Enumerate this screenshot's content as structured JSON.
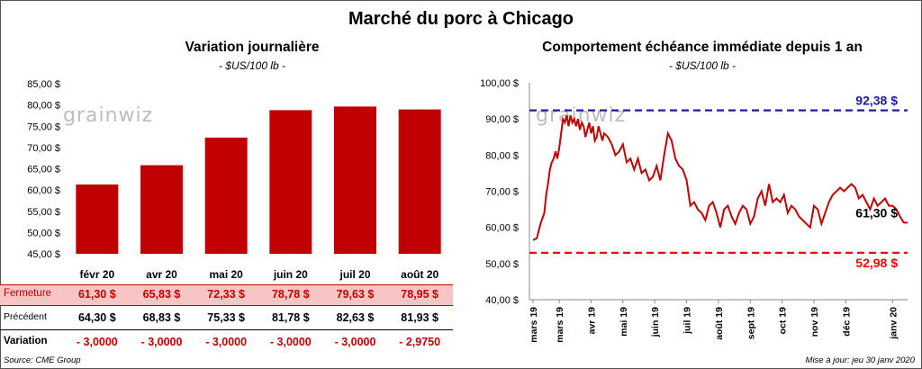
{
  "title": "Marché du porc à Chicago",
  "footer": {
    "source": "Source: CME Group",
    "update": "Mise à jour: jeu 30 janv 2020"
  },
  "left": {
    "title": "Variation  journalière",
    "subtitle": "- $US/100 lb -",
    "watermark": "grainwiz",
    "table": {
      "rows": [
        {
          "label": "Fermeture",
          "cells": [
            "61,30  $",
            "65,83  $",
            "72,33  $",
            "78,78  $",
            "79,63  $",
            "78,95  $"
          ]
        },
        {
          "label": "Précédent",
          "cells": [
            "64,30  $",
            "68,83  $",
            "75,33  $",
            "81,78  $",
            "82,63  $",
            "81,93  $"
          ]
        },
        {
          "label": "Variation",
          "cells": [
            "- 3,0000",
            "- 3,0000",
            "- 3,0000",
            "- 3,0000",
            "- 3,0000",
            "- 2,9750"
          ]
        }
      ]
    }
  },
  "right": {
    "title": "Comportement  échéance immédiate depuis 1 an",
    "subtitle": "- $US/100 lb -",
    "watermark": "grainwiz"
  },
  "colors": {
    "bar": "#c00000",
    "line": "#c00000",
    "max_line": "#1a1aa8",
    "min_line": "#ff0000",
    "table_highlight": "#f8c4c4",
    "table_highlight_text": "#c00000"
  },
  "chart_data": [
    {
      "type": "bar",
      "title": "Variation  journalière",
      "subtitle": "- $US/100 lb -",
      "categories": [
        "févr 20",
        "avr 20",
        "mai 20",
        "juin 20",
        "juil 20",
        "août 20"
      ],
      "values": [
        61.3,
        65.83,
        72.33,
        78.78,
        79.63,
        78.95
      ],
      "ylim": [
        45,
        85
      ],
      "yticks": [
        "45,00 $",
        "50,00 $",
        "55,00 $",
        "60,00 $",
        "65,00 $",
        "70,00 $",
        "75,00 $",
        "80,00 $",
        "85,00 $"
      ],
      "ytick_values": [
        45,
        50,
        55,
        60,
        65,
        70,
        75,
        80,
        85
      ],
      "grid": false
    },
    {
      "type": "line",
      "title": "Comportement  échéance immédiate depuis 1 an",
      "subtitle": "- $US/100 lb -",
      "ylim": [
        40,
        100
      ],
      "yticks": [
        "40,00 $",
        "50,00 $",
        "60,00 $",
        "70,00 $",
        "80,00 $",
        "90,00 $",
        "100,00 $"
      ],
      "ytick_values": [
        40,
        50,
        60,
        70,
        80,
        90,
        100
      ],
      "xticks": [
        "mars 19",
        "mars 19",
        "avr 19",
        "mai 19",
        "juin 19",
        "juil 19",
        "août 19",
        "sept 19",
        "oct 19",
        "nov 19",
        "déc 19",
        "janv 20"
      ],
      "xtick_positions": [
        0,
        0.07,
        0.155,
        0.24,
        0.325,
        0.41,
        0.495,
        0.58,
        0.665,
        0.75,
        0.835,
        0.96
      ],
      "series": [
        {
          "x": [
            0,
            0.01,
            0.02,
            0.03,
            0.035,
            0.04,
            0.045,
            0.05,
            0.055,
            0.06,
            0.065,
            0.07,
            0.075,
            0.08,
            0.085,
            0.09,
            0.095,
            0.1,
            0.105,
            0.11,
            0.115,
            0.12,
            0.125,
            0.13,
            0.135,
            0.14,
            0.145,
            0.15,
            0.155,
            0.16,
            0.165,
            0.17,
            0.175,
            0.18,
            0.185,
            0.19,
            0.2,
            0.21,
            0.22,
            0.23,
            0.24,
            0.25,
            0.26,
            0.27,
            0.28,
            0.29,
            0.3,
            0.31,
            0.32,
            0.33,
            0.34,
            0.35,
            0.36,
            0.37,
            0.38,
            0.39,
            0.4,
            0.41,
            0.42,
            0.43,
            0.44,
            0.45,
            0.46,
            0.47,
            0.48,
            0.49,
            0.5,
            0.51,
            0.52,
            0.53,
            0.54,
            0.55,
            0.56,
            0.57,
            0.58,
            0.59,
            0.6,
            0.61,
            0.62,
            0.63,
            0.64,
            0.65,
            0.66,
            0.67,
            0.68,
            0.69,
            0.7,
            0.71,
            0.72,
            0.73,
            0.74,
            0.75,
            0.76,
            0.77,
            0.78,
            0.79,
            0.8,
            0.81,
            0.82,
            0.83,
            0.84,
            0.85,
            0.86,
            0.87,
            0.88,
            0.89,
            0.9,
            0.91,
            0.92,
            0.93,
            0.94,
            0.95,
            0.96,
            0.97,
            0.98,
            0.99,
            1.0
          ],
          "values": [
            56.5,
            57,
            61,
            64,
            69,
            72,
            76,
            78,
            79,
            81,
            79,
            82,
            86,
            90,
            89,
            91,
            88,
            91,
            89,
            90,
            88,
            90,
            87,
            89,
            88,
            85,
            87,
            89,
            86,
            88,
            84,
            85,
            88,
            86,
            84,
            86,
            85,
            83,
            80,
            81,
            83,
            78,
            79,
            76,
            79,
            75,
            76,
            73,
            74,
            77,
            73,
            80,
            86,
            84,
            79,
            77,
            76,
            73,
            66,
            67,
            65,
            64,
            62,
            66,
            67,
            64,
            60,
            65,
            66,
            63,
            61,
            64,
            66,
            65,
            61,
            63,
            68,
            70,
            66,
            72,
            67,
            68,
            67,
            69,
            64,
            66,
            65,
            63,
            62,
            61,
            60,
            66,
            65,
            61,
            64,
            67,
            69,
            70,
            71,
            70,
            71,
            72,
            71,
            68,
            69,
            67,
            65,
            68,
            66,
            67,
            68,
            66,
            66,
            65,
            63,
            61.3,
            61.3
          ]
        }
      ],
      "reference_lines": [
        {
          "label": "92,38 $",
          "value": 92.38
        },
        {
          "label": "52,98 $",
          "value": 52.98
        }
      ],
      "last_label": "61,30 $",
      "last_value": 61.3,
      "grid": false
    }
  ]
}
